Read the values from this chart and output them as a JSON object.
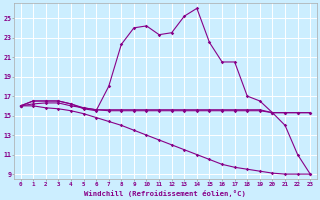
{
  "xlabel": "Windchill (Refroidissement éolien,°C)",
  "xlim": [
    -0.5,
    23.5
  ],
  "ylim": [
    8.5,
    26.5
  ],
  "yticks": [
    9,
    11,
    13,
    15,
    17,
    19,
    21,
    23,
    25
  ],
  "xticks": [
    0,
    1,
    2,
    3,
    4,
    5,
    6,
    7,
    8,
    9,
    10,
    11,
    12,
    13,
    14,
    15,
    16,
    17,
    18,
    19,
    20,
    21,
    22,
    23
  ],
  "bg_color": "#cceeff",
  "grid_color": "#ffffff",
  "line_color": "#880088",
  "series": [
    [
      16.0,
      16.5,
      16.5,
      16.5,
      16.2,
      15.7,
      15.5,
      18.0,
      22.3,
      24.0,
      24.2,
      23.3,
      23.5,
      25.2,
      26.0,
      22.5,
      20.5,
      20.5,
      17.0,
      16.5,
      15.3,
      14.0,
      11.0,
      9.0
    ],
    [
      16.0,
      16.5,
      16.5,
      16.5,
      16.2,
      15.8,
      15.6,
      15.6,
      15.6,
      15.6,
      15.6,
      15.6,
      15.6,
      15.6,
      15.6,
      15.6,
      15.6,
      15.6,
      15.6,
      15.6,
      15.3,
      15.3,
      15.3,
      15.3
    ],
    [
      16.0,
      16.2,
      16.3,
      16.3,
      16.0,
      15.8,
      15.6,
      15.5,
      15.5,
      15.5,
      15.5,
      15.5,
      15.5,
      15.5,
      15.5,
      15.5,
      15.5,
      15.5,
      15.5,
      15.5,
      15.3,
      15.3,
      15.3,
      15.3
    ],
    [
      16.0,
      16.0,
      15.8,
      15.7,
      15.5,
      15.2,
      14.8,
      14.4,
      14.0,
      13.5,
      13.0,
      12.5,
      12.0,
      11.5,
      11.0,
      10.5,
      10.0,
      9.7,
      9.5,
      9.3,
      9.1,
      9.0,
      9.0,
      9.0
    ]
  ]
}
